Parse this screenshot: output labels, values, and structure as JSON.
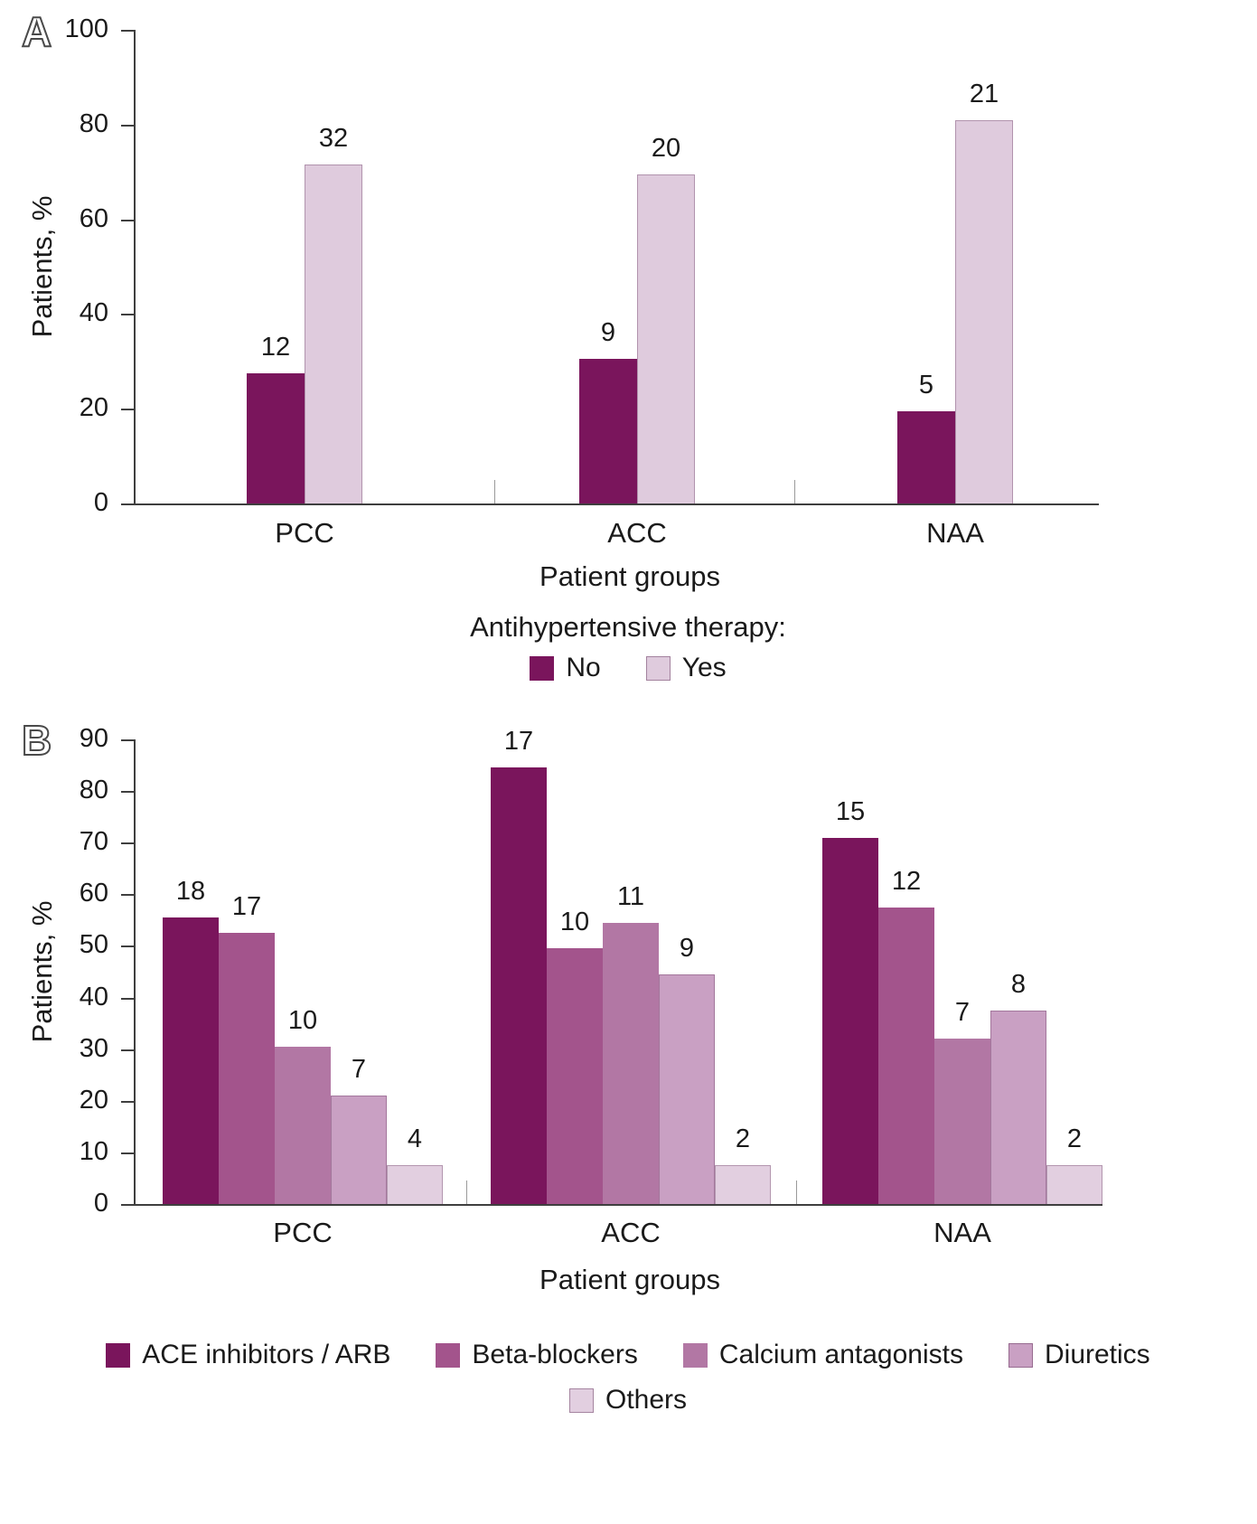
{
  "panels": [
    {
      "label": "A"
    },
    {
      "label": "B"
    }
  ],
  "chart_data": [
    {
      "type": "bar",
      "title": "",
      "xlabel": "Patient groups",
      "ylabel": "Patients, %",
      "ylim": [
        0,
        100
      ],
      "yticks": [
        0,
        20,
        40,
        60,
        80,
        100
      ],
      "categories": [
        "PCC",
        "ACC",
        "NAA"
      ],
      "legend_title": "Antihypertensive therapy:",
      "legend_position": "bottom",
      "grid": false,
      "series": [
        {
          "name": "No",
          "color": "#7A155C",
          "values_pct": [
            27.5,
            30.5,
            19.5
          ],
          "labels": [
            "12",
            "9",
            "5"
          ]
        },
        {
          "name": "Yes",
          "color": "#DFCBDD",
          "values_pct": [
            71.5,
            69.5,
            81
          ],
          "labels": [
            "32",
            "20",
            "21"
          ]
        }
      ]
    },
    {
      "type": "bar",
      "title": "",
      "xlabel": "Patient groups",
      "ylabel": "Patients, %",
      "ylim": [
        0,
        90
      ],
      "yticks": [
        0,
        10,
        20,
        30,
        40,
        50,
        60,
        70,
        80,
        90
      ],
      "categories": [
        "PCC",
        "ACC",
        "NAA"
      ],
      "legend_position": "bottom",
      "grid": false,
      "series": [
        {
          "name": "ACE inhibitors / ARB",
          "color": "#7A155C",
          "values_pct": [
            55.5,
            84.5,
            71
          ],
          "labels": [
            "18",
            "17",
            "15"
          ]
        },
        {
          "name": "Beta-blockers",
          "color": "#A3548C",
          "values_pct": [
            52.5,
            49.5,
            57.5
          ],
          "labels": [
            "17",
            "10",
            "12"
          ]
        },
        {
          "name": "Calcium antagonists",
          "color": "#B277A4",
          "values_pct": [
            30.5,
            54.5,
            32
          ],
          "labels": [
            "10",
            "11",
            "7"
          ]
        },
        {
          "name": "Diuretics",
          "color": "#C9A0C3",
          "values_pct": [
            21,
            44.5,
            37.5
          ],
          "labels": [
            "7",
            "9",
            "8"
          ]
        },
        {
          "name": "Others",
          "color": "#E2CFE0",
          "values_pct": [
            7.5,
            7.5,
            7.5
          ],
          "labels": [
            "4",
            "2",
            "2"
          ]
        }
      ]
    }
  ]
}
